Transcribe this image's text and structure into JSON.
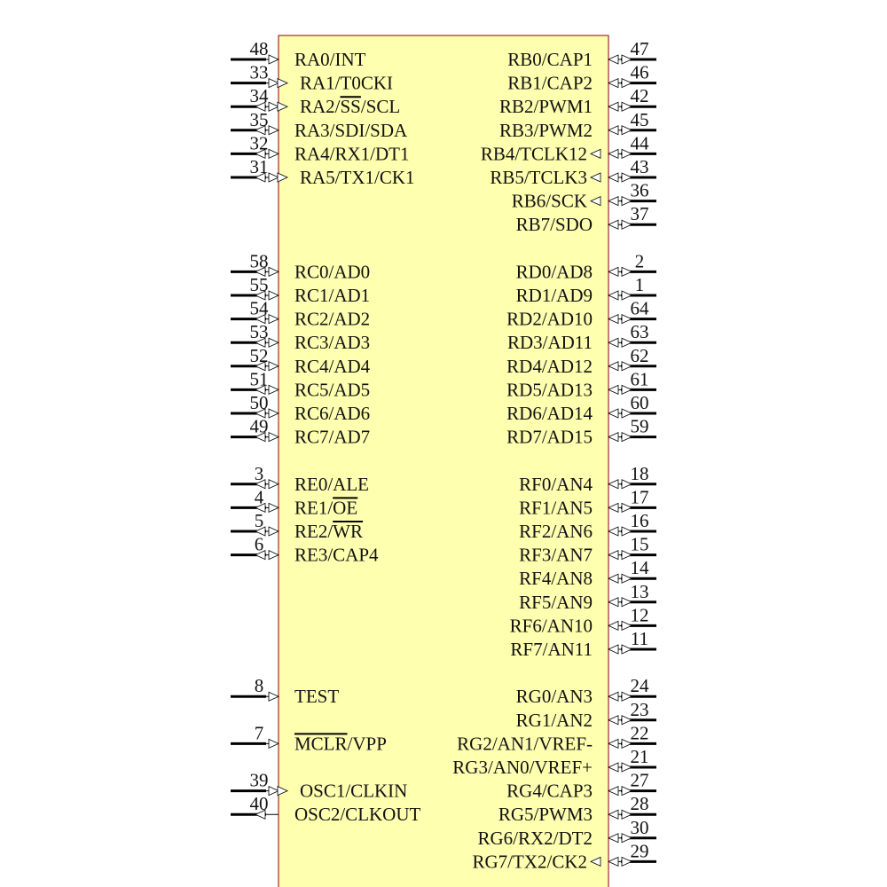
{
  "colors": {
    "body_fill": "#ffffb0",
    "body_stroke": "#8b0000",
    "pin": "#000000"
  },
  "left_pins": [
    {
      "row": 0,
      "num": "48",
      "label": "RA0/INT",
      "type": "input"
    },
    {
      "row": 1,
      "num": "33",
      "label": "RA1/T0CKI",
      "type": "input",
      "inner_arrow": true
    },
    {
      "row": 2,
      "num": "34",
      "label": "RA2/SS/SCL",
      "overline": "SS",
      "type": "io",
      "inner_arrow": true
    },
    {
      "row": 3,
      "num": "35",
      "label": "RA3/SDI/SDA",
      "type": "io"
    },
    {
      "row": 4,
      "num": "32",
      "label": "RA4/RX1/DT1",
      "type": "io"
    },
    {
      "row": 5,
      "num": "31",
      "label": "RA5/TX1/CK1",
      "type": "io",
      "inner_arrow": true
    },
    {
      "row": 9,
      "num": "58",
      "label": "RC0/AD0",
      "type": "io"
    },
    {
      "row": 10,
      "num": "55",
      "label": "RC1/AD1",
      "type": "io"
    },
    {
      "row": 11,
      "num": "54",
      "label": "RC2/AD2",
      "type": "io"
    },
    {
      "row": 12,
      "num": "53",
      "label": "RC3/AD3",
      "type": "io"
    },
    {
      "row": 13,
      "num": "52",
      "label": "RC4/AD4",
      "type": "io"
    },
    {
      "row": 14,
      "num": "51",
      "label": "RC5/AD5",
      "type": "io"
    },
    {
      "row": 15,
      "num": "50",
      "label": "RC6/AD6",
      "type": "io"
    },
    {
      "row": 16,
      "num": "49",
      "label": "RC7/AD7",
      "type": "io"
    },
    {
      "row": 18,
      "num": "3",
      "label": "RE0/ALE",
      "type": "io"
    },
    {
      "row": 19,
      "num": "4",
      "label": "RE1/OE",
      "overline": "OE",
      "type": "io"
    },
    {
      "row": 20,
      "num": "5",
      "label": "RE2/WR",
      "overline": "WR",
      "type": "io"
    },
    {
      "row": 21,
      "num": "6",
      "label": "RE3/CAP4",
      "type": "io"
    },
    {
      "row": 27,
      "num": "8",
      "label": "TEST",
      "type": "input"
    },
    {
      "row": 29,
      "num": "7",
      "label": "MCLR/VPP",
      "overline": "MCLR",
      "type": "input"
    },
    {
      "row": 31,
      "num": "39",
      "label": "OSC1/CLKIN",
      "type": "input",
      "inner_arrow": true
    },
    {
      "row": 32,
      "num": "40",
      "label": "OSC2/CLKOUT",
      "type": "output"
    }
  ],
  "right_pins": [
    {
      "row": 0,
      "num": "47",
      "label": "RB0/CAP1",
      "type": "io"
    },
    {
      "row": 1,
      "num": "46",
      "label": "RB1/CAP2",
      "type": "io"
    },
    {
      "row": 2,
      "num": "42",
      "label": "RB2/PWM1",
      "type": "io"
    },
    {
      "row": 3,
      "num": "45",
      "label": "RB3/PWM2",
      "type": "io"
    },
    {
      "row": 4,
      "num": "44",
      "label": "RB4/TCLK12",
      "type": "io",
      "inner_arrow": true
    },
    {
      "row": 5,
      "num": "43",
      "label": "RB5/TCLK3",
      "type": "io",
      "inner_arrow": true
    },
    {
      "row": 6,
      "num": "36",
      "label": "RB6/SCK",
      "type": "io",
      "inner_arrow": true
    },
    {
      "row": 7,
      "num": "37",
      "label": "RB7/SDO",
      "type": "io"
    },
    {
      "row": 9,
      "num": "2",
      "label": "RD0/AD8",
      "type": "io"
    },
    {
      "row": 10,
      "num": "1",
      "label": "RD1/AD9",
      "type": "io"
    },
    {
      "row": 11,
      "num": "64",
      "label": "RD2/AD10",
      "type": "io"
    },
    {
      "row": 12,
      "num": "63",
      "label": "RD3/AD11",
      "type": "io"
    },
    {
      "row": 13,
      "num": "62",
      "label": "RD4/AD12",
      "type": "io"
    },
    {
      "row": 14,
      "num": "61",
      "label": "RD5/AD13",
      "type": "io"
    },
    {
      "row": 15,
      "num": "60",
      "label": "RD6/AD14",
      "type": "io"
    },
    {
      "row": 16,
      "num": "59",
      "label": "RD7/AD15",
      "type": "io"
    },
    {
      "row": 18,
      "num": "18",
      "label": "RF0/AN4",
      "type": "io"
    },
    {
      "row": 19,
      "num": "17",
      "label": "RF1/AN5",
      "type": "io"
    },
    {
      "row": 20,
      "num": "16",
      "label": "RF2/AN6",
      "type": "io"
    },
    {
      "row": 21,
      "num": "15",
      "label": "RF3/AN7",
      "type": "io"
    },
    {
      "row": 22,
      "num": "14",
      "label": "RF4/AN8",
      "type": "io"
    },
    {
      "row": 23,
      "num": "13",
      "label": "RF5/AN9",
      "type": "io"
    },
    {
      "row": 24,
      "num": "12",
      "label": "RF6/AN10",
      "type": "io"
    },
    {
      "row": 25,
      "num": "11",
      "label": "RF7/AN11",
      "type": "io"
    },
    {
      "row": 27,
      "num": "24",
      "label": "RG0/AN3",
      "type": "io"
    },
    {
      "row": 28,
      "num": "23",
      "label": "RG1/AN2",
      "type": "io"
    },
    {
      "row": 29,
      "num": "22",
      "label": "RG2/AN1/VREF-",
      "type": "io"
    },
    {
      "row": 30,
      "num": "21",
      "label": "RG3/AN0/VREF+",
      "type": "io"
    },
    {
      "row": 31,
      "num": "27",
      "label": "RG4/CAP3",
      "type": "io"
    },
    {
      "row": 32,
      "num": "28",
      "label": "RG5/PWM3",
      "type": "io"
    },
    {
      "row": 33,
      "num": "30",
      "label": "RG6/RX2/DT2",
      "type": "io"
    },
    {
      "row": 34,
      "num": "29",
      "label": "RG7/TX2/CK2",
      "type": "io",
      "inner_arrow": true
    }
  ]
}
